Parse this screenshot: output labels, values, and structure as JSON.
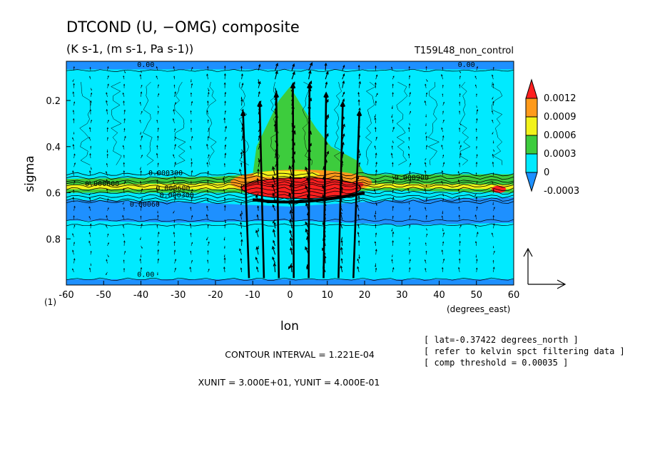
{
  "chart_data": {
    "type": "heatmap",
    "title": "DTCOND (U, −OMG) composite",
    "subtitle": "(K s-1, (m s-1, Pa s-1))",
    "run_label": "T159L48_non_control",
    "xlabel": "lon",
    "ylabel": "sigma",
    "x_unit_label": "(degrees_east)",
    "corner_label": "(1)",
    "xlim": [
      -60,
      60
    ],
    "ylim": [
      1.0,
      0.03
    ],
    "x_ticks": [
      -60,
      -50,
      -40,
      -30,
      -20,
      -10,
      0,
      10,
      20,
      30,
      40,
      50,
      60
    ],
    "x_tick_labels": [
      "-60",
      "-50",
      "-40",
      "-30",
      "-20",
      "-10",
      "0",
      "10",
      "20",
      "30",
      "40",
      "50",
      "60"
    ],
    "y_ticks": [
      0.2,
      0.4,
      0.6,
      0.8
    ],
    "y_tick_labels": [
      "0.2",
      "0.4",
      "0.6",
      "0.8"
    ],
    "colorbar": {
      "labels": [
        "0.0012",
        "0.0009",
        "0.0006",
        "0.0003",
        "0",
        "-0.0003"
      ],
      "colors": [
        "#ff2020",
        "#ff9a1a",
        "#f2f21a",
        "#3dcc3d",
        "#00eaff",
        "#1e90ff"
      ]
    },
    "contour_labels": [
      "0.00",
      "0.00",
      "0.00",
      "0.000300",
      "0.000600",
      "0.000600",
      "0.000300",
      "0.000900",
      "0.00060"
    ],
    "contour_interval_text": "CONTOUR INTERVAL = 1.221E-04",
    "units_text": "XUNIT = 3.000E+01, YUNIT = 4.000E-01",
    "notes": [
      "[ lat=-0.37422 degrees_north ]",
      "[ refer to kelvin spct filtering data ]",
      "[ comp threshold = 0.00035 ]"
    ]
  }
}
